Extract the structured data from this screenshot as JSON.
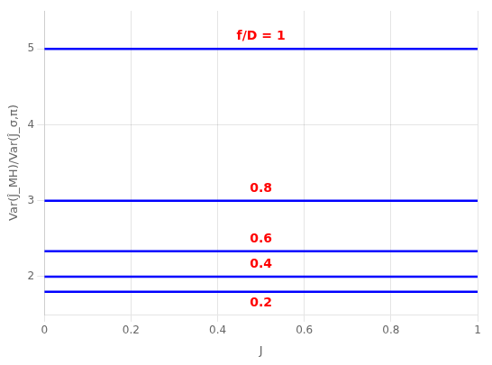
{
  "chart_data": {
    "type": "line",
    "xlabel": "J",
    "ylabel": "Var(Ĵ_MH)/Var(Ĵ_σ,π)",
    "x": [
      0,
      1
    ],
    "series": [
      {
        "values": [
          5.0,
          5.0
        ]
      },
      {
        "values": [
          3.0,
          3.0
        ]
      },
      {
        "values": [
          2.333,
          2.333
        ]
      },
      {
        "values": [
          2.0,
          2.0
        ]
      },
      {
        "values": [
          1.8,
          1.8
        ]
      }
    ],
    "color": "#0000ff",
    "annotations": [
      {
        "text": "f/D = 1",
        "x": 0.5,
        "y": 5.08,
        "color": "#ff0000"
      },
      {
        "text": "0.8",
        "x": 0.5,
        "y": 3.08,
        "color": "#ff0000"
      },
      {
        "text": "0.6",
        "x": 0.5,
        "y": 2.413,
        "color": "#ff0000"
      },
      {
        "text": "0.4",
        "x": 0.5,
        "y": 2.08,
        "color": "#ff0000"
      },
      {
        "text": "0.2",
        "x": 0.5,
        "y": 1.57,
        "color": "#ff0000"
      }
    ],
    "xlim": [
      0,
      1
    ],
    "ylim": [
      1.5,
      5.5
    ],
    "xticks": [
      0,
      0.2,
      0.4,
      0.6,
      0.8,
      1.0
    ],
    "yticks": [
      2,
      3,
      4,
      5
    ],
    "grid": true
  }
}
